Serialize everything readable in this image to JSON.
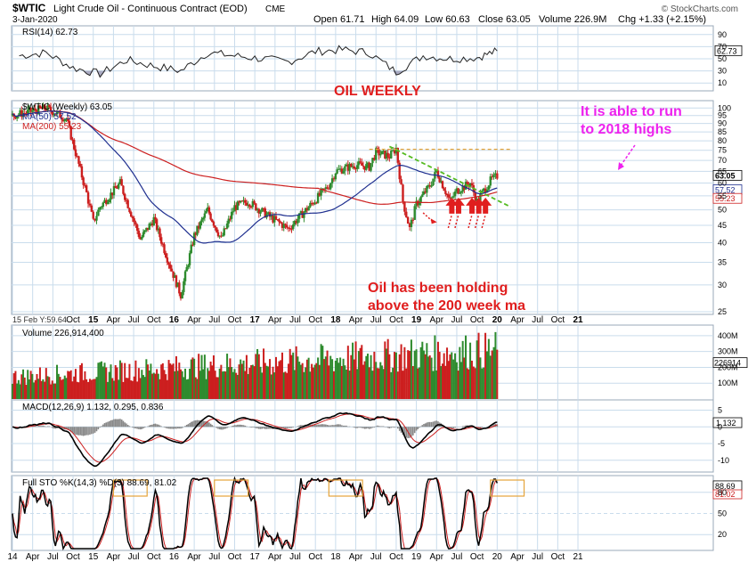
{
  "header": {
    "symbol": "$WTIC",
    "name": "Light Crude Oil - Continuous Contract (EOD)",
    "exchange": "CME",
    "date": "3-Jan-2020",
    "open": "Open 61.71",
    "high": "High 64.09",
    "low": "Low 60.63",
    "close": "Close 63.05",
    "volume": "Volume 226.9M",
    "change": "Chg +1.33 (+2.15%)",
    "watermark": "© StockCharts.com"
  },
  "colors": {
    "up": "#2e8b2e",
    "down": "#cc1f1f",
    "ma50": "#1f2f8f",
    "ma200": "#cc1f1f",
    "annotation_red": "#e01e1e",
    "annotation_magenta": "#ee22ee",
    "trendline": "#55bb22",
    "resistance": "#e5a43a",
    "grid": "#c9dcec"
  },
  "chart_data": [
    {
      "type": "line",
      "title": "RSI(14) 62.73",
      "ylim": [
        0,
        100
      ],
      "ticks": [
        "90",
        "70",
        "50",
        "30",
        "10"
      ],
      "last": "62.73",
      "x": [
        "2014-02",
        "2014-06",
        "2014-10",
        "2015-02",
        "2015-06",
        "2015-10",
        "2016-02",
        "2016-06",
        "2016-10",
        "2017-02",
        "2017-06",
        "2017-10",
        "2018-02",
        "2018-06",
        "2018-10",
        "2019-02",
        "2019-06",
        "2019-10",
        "2020-01"
      ],
      "values": [
        55,
        60,
        35,
        25,
        48,
        38,
        30,
        60,
        55,
        50,
        45,
        62,
        65,
        60,
        28,
        55,
        50,
        52,
        63
      ]
    },
    {
      "type": "candlestick",
      "title": "$WTIC (Weekly) 63.05",
      "scale": "log",
      "ylim": [
        25,
        100
      ],
      "ticks": [
        "100",
        "95",
        "90",
        "85",
        "80",
        "75",
        "70",
        "65",
        "60",
        "55",
        "50",
        "45",
        "40",
        "35",
        "30",
        "25"
      ],
      "x_ticks": [
        "Oct",
        "15",
        "Apr",
        "Jul",
        "Oct",
        "16",
        "Apr",
        "Jul",
        "Oct",
        "17",
        "Apr",
        "Jul",
        "Oct",
        "18",
        "Apr",
        "Jul",
        "Oct",
        "19",
        "Apr",
        "Jul",
        "Oct",
        "20",
        "Apr",
        "Jul",
        "Oct",
        "21"
      ],
      "x_start_label": "15 Feb Y:59.64",
      "series": [
        {
          "name": "MA(50) 57.52",
          "last": "57.52"
        },
        {
          "name": "MA(200) 55.23",
          "last": "55.23"
        }
      ],
      "last_price": "63.05",
      "price_path": [
        [
          "2014-01",
          95
        ],
        [
          "2014-06",
          100
        ],
        [
          "2014-09",
          93
        ],
        [
          "2014-12",
          56
        ],
        [
          "2015-01",
          46
        ],
        [
          "2015-02",
          51
        ],
        [
          "2015-05",
          60
        ],
        [
          "2015-08",
          41
        ],
        [
          "2015-10",
          47
        ],
        [
          "2015-12",
          36
        ],
        [
          "2016-02",
          28
        ],
        [
          "2016-04",
          42
        ],
        [
          "2016-06",
          50
        ],
        [
          "2016-08",
          41
        ],
        [
          "2016-10",
          51
        ],
        [
          "2016-12",
          53
        ],
        [
          "2017-03",
          48
        ],
        [
          "2017-06",
          44
        ],
        [
          "2017-09",
          51
        ],
        [
          "2017-12",
          59
        ],
        [
          "2018-01",
          65
        ],
        [
          "2018-04",
          68
        ],
        [
          "2018-06",
          67
        ],
        [
          "2018-07",
          74
        ],
        [
          "2018-09",
          72
        ],
        [
          "2018-10",
          76
        ],
        [
          "2018-11",
          53
        ],
        [
          "2018-12",
          44
        ],
        [
          "2019-01",
          52
        ],
        [
          "2019-03",
          59
        ],
        [
          "2019-04",
          65
        ],
        [
          "2019-06",
          53
        ],
        [
          "2019-07",
          57
        ],
        [
          "2019-09",
          60
        ],
        [
          "2019-10",
          53
        ],
        [
          "2019-11",
          57
        ],
        [
          "2019-12",
          61
        ],
        [
          "2020-01",
          63
        ]
      ],
      "annotations": [
        "OIL WEEKLY",
        "It is able to run",
        "to 2018 highs",
        "Oil has been holding",
        "above the 200 week ma"
      ]
    },
    {
      "type": "bar",
      "title": "Volume 226,914,400",
      "ylim": [
        0,
        450
      ],
      "ticks": [
        "400M",
        "300M",
        "200M",
        "100M"
      ],
      "last": "226914"
    },
    {
      "type": "line",
      "title": "MACD(12,26,9) 1.132, 0.295, 0.836",
      "ylim": [
        -13,
        7
      ],
      "ticks": [
        "5",
        "0",
        "-5",
        "-10"
      ],
      "last": "1.132"
    },
    {
      "type": "line",
      "title": "Full STO %K(14,3) %D(3) 88.69, 81.02",
      "ylim": [
        0,
        100
      ],
      "ticks": [
        "80",
        "50",
        "20"
      ],
      "last_k": "88.69",
      "last_d": "81.02"
    }
  ],
  "bottom_axis": [
    "14",
    "Apr",
    "Jul",
    "Oct",
    "15",
    "Apr",
    "Jul",
    "Oct",
    "16",
    "Apr",
    "Jul",
    "Oct",
    "17",
    "Apr",
    "Jul",
    "Oct",
    "18",
    "Apr",
    "Jul",
    "Oct",
    "19",
    "Apr",
    "Jul",
    "Oct",
    "20",
    "Apr",
    "Jul",
    "Oct",
    "21"
  ]
}
